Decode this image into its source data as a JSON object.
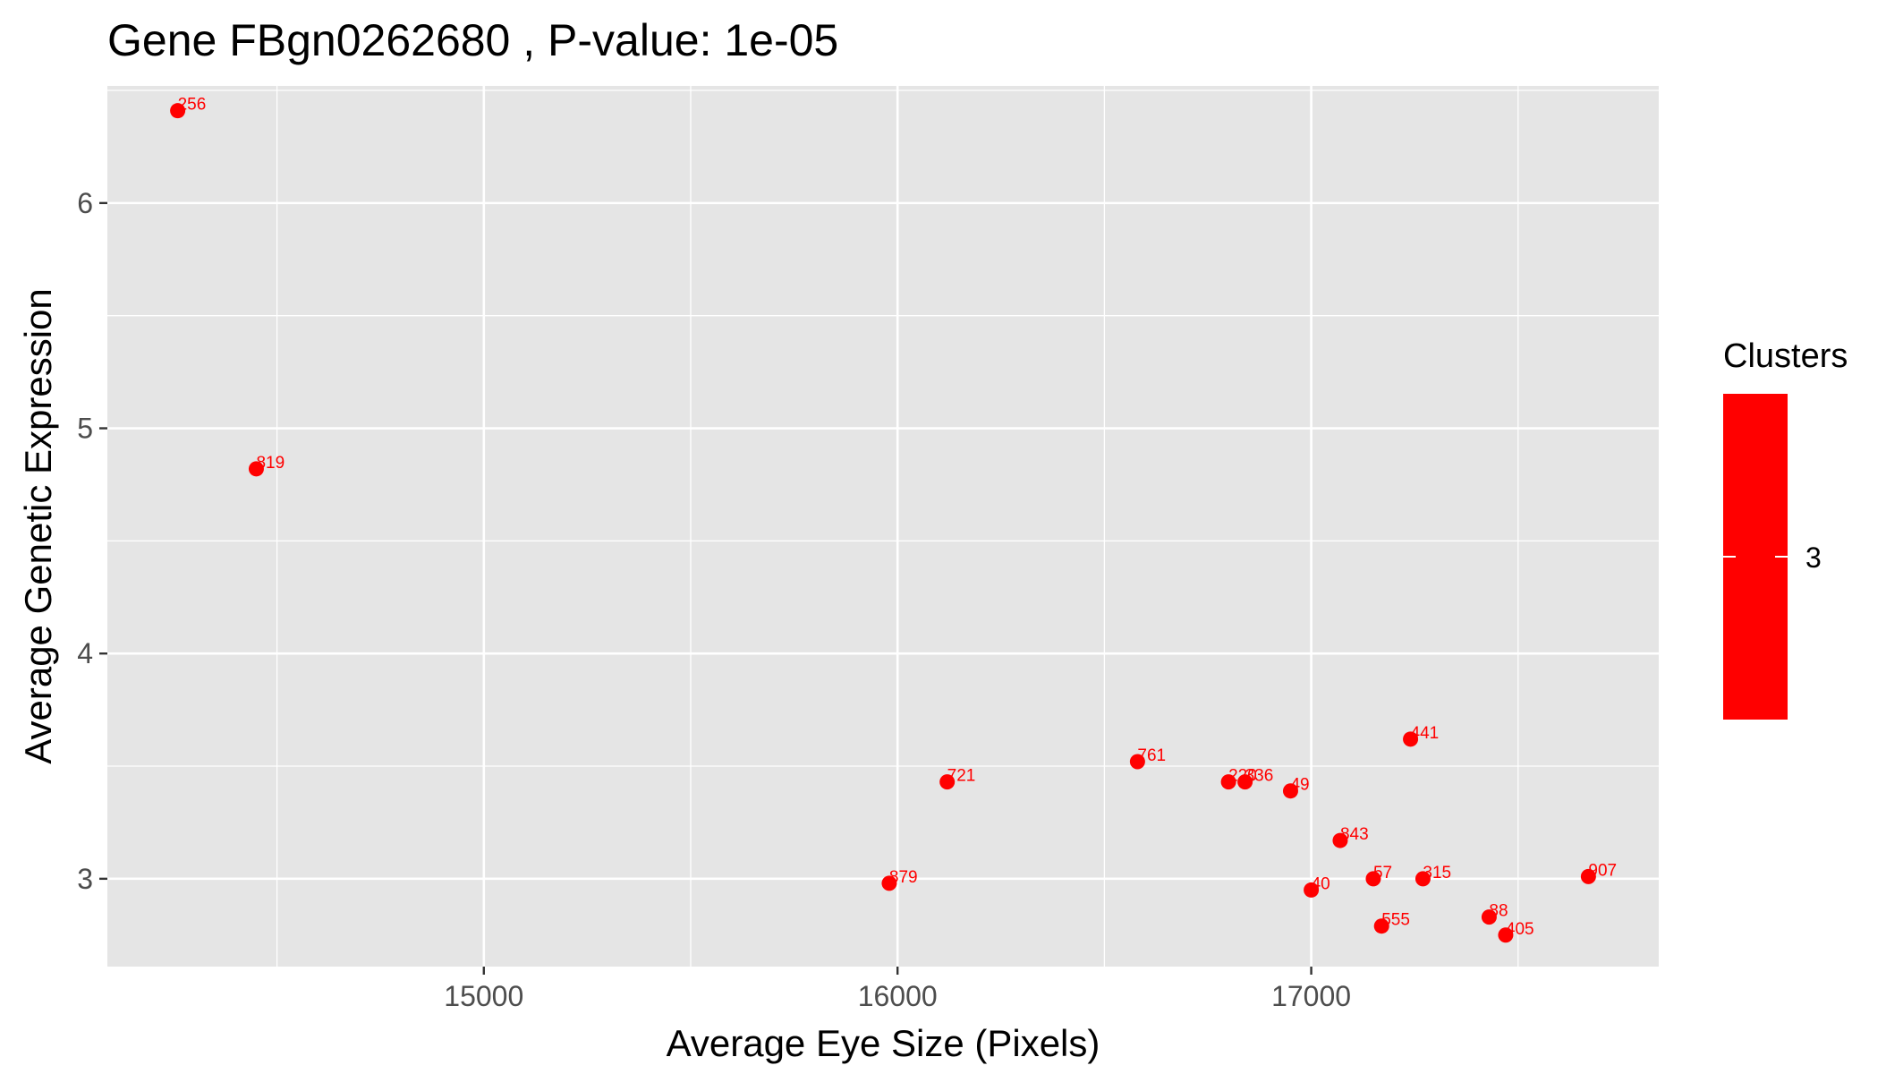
{
  "chart_data": {
    "type": "scatter",
    "title": "Gene FBgn0262680 , P-value: 1e-05",
    "xlabel": "Average Eye Size (Pixels)",
    "ylabel": "Average Genetic Expression",
    "xlim": [
      14090,
      17840
    ],
    "ylim": [
      2.61,
      6.52
    ],
    "x_ticks": [
      15000,
      16000,
      17000
    ],
    "x_tick_labels": [
      "15000",
      "16000",
      "17000"
    ],
    "y_ticks": [
      3,
      4,
      5,
      6
    ],
    "y_tick_labels": [
      "3",
      "4",
      "5",
      "6"
    ],
    "grid": true,
    "point_color": "#ff0000",
    "panel_background": "#e5e5e5",
    "gridline_color": "#ffffff",
    "legend": {
      "title": "Clusters",
      "placement": "right",
      "entries": [
        "3"
      ],
      "color": "#ff0000"
    },
    "points": [
      {
        "label": "256",
        "x": 14260,
        "y": 6.41
      },
      {
        "label": "819",
        "x": 14450,
        "y": 4.82
      },
      {
        "label": "721",
        "x": 16120,
        "y": 3.43
      },
      {
        "label": "879",
        "x": 15980,
        "y": 2.98
      },
      {
        "label": "761",
        "x": 16580,
        "y": 3.52
      },
      {
        "label": "220",
        "x": 16800,
        "y": 3.43
      },
      {
        "label": "336",
        "x": 16840,
        "y": 3.43
      },
      {
        "label": "49",
        "x": 16950,
        "y": 3.39
      },
      {
        "label": "441",
        "x": 17240,
        "y": 3.62
      },
      {
        "label": "843",
        "x": 17070,
        "y": 3.17
      },
      {
        "label": "40",
        "x": 17000,
        "y": 2.95
      },
      {
        "label": "57",
        "x": 17150,
        "y": 3.0
      },
      {
        "label": "315",
        "x": 17270,
        "y": 3.0
      },
      {
        "label": "555",
        "x": 17170,
        "y": 2.79
      },
      {
        "label": "88",
        "x": 17430,
        "y": 2.83
      },
      {
        "label": "405",
        "x": 17470,
        "y": 2.75
      },
      {
        "label": "907",
        "x": 17670,
        "y": 3.01
      }
    ]
  }
}
